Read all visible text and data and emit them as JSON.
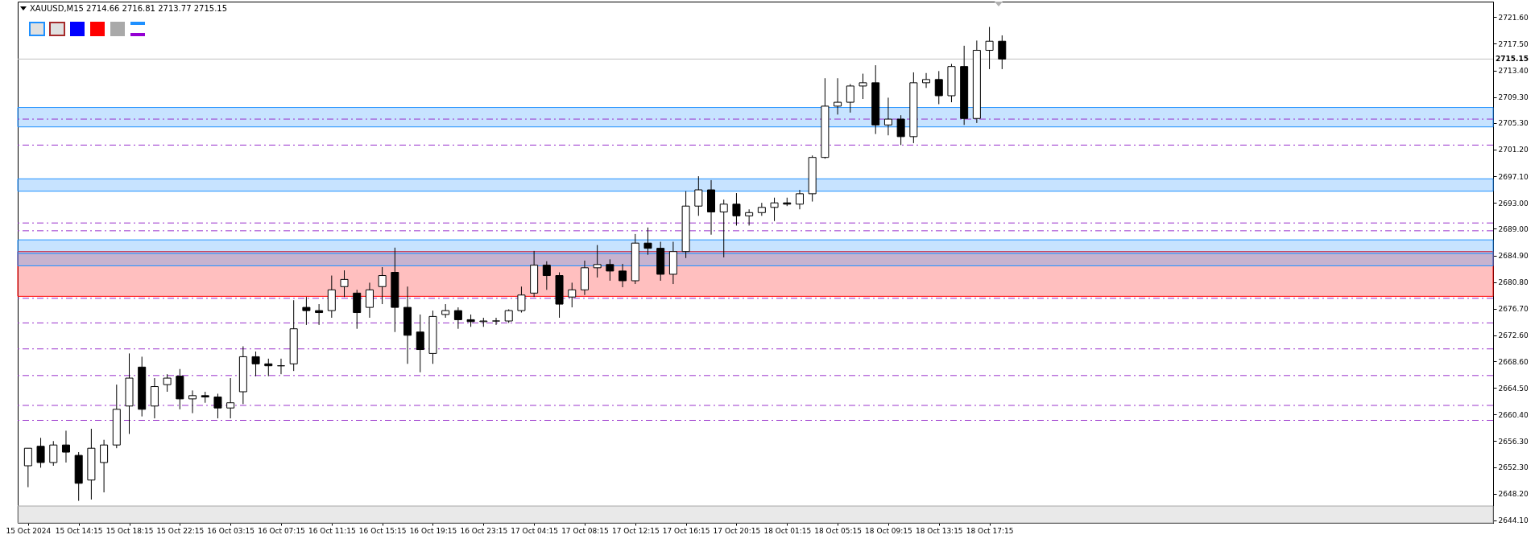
{
  "chart_data": {
    "type": "candlestick",
    "title": "XAUUSD,M15  2714.66 2716.81 2713.77 2715.15",
    "categories": [
      "15 Oct 2024",
      null,
      null,
      null,
      "15 Oct 14:15",
      null,
      null,
      null,
      "15 Oct 18:15",
      null,
      null,
      null,
      "15 Oct 22:15",
      null,
      null,
      null,
      "16 Oct 03:15",
      null,
      null,
      null,
      "16 Oct 07:15",
      null,
      null,
      null,
      "16 Oct 11:15",
      null,
      null,
      null,
      "16 Oct 15:15",
      null,
      null,
      null,
      "16 Oct 19:15",
      null,
      null,
      null,
      "16 Oct 23:15",
      null,
      null,
      null,
      "17 Oct 04:15",
      null,
      null,
      null,
      "17 Oct 08:15",
      null,
      null,
      null,
      "17 Oct 12:15",
      null,
      null,
      null,
      "17 Oct 16:15",
      null,
      null,
      null,
      "17 Oct 20:15",
      null,
      null,
      null,
      "18 Oct 01:15",
      null,
      null,
      null,
      "18 Oct 05:15",
      null,
      null,
      null,
      "18 Oct 09:15",
      null,
      null,
      null,
      "18 Oct 13:15",
      null,
      null,
      null,
      "18 Oct 17:15",
      null,
      null,
      null,
      null,
      null,
      null,
      null,
      null,
      null,
      null,
      null,
      null,
      null,
      null,
      null,
      null,
      null,
      null,
      null,
      null,
      null,
      null,
      null,
      null,
      null,
      null,
      null,
      null,
      null,
      null,
      null,
      null,
      null,
      null,
      null,
      null,
      null,
      null,
      null
    ],
    "ohlc": [
      [
        2652.5,
        2655.2,
        2649.2,
        2655.2
      ],
      [
        2655.5,
        2656.8,
        2652.2,
        2653.0
      ],
      [
        2653.0,
        2656.3,
        2652.5,
        2655.7
      ],
      [
        2655.7,
        2657.9,
        2653.0,
        2654.6
      ],
      [
        2654.1,
        2654.6,
        2647.1,
        2649.8
      ],
      [
        2650.3,
        2658.2,
        2647.3,
        2655.2
      ],
      [
        2653.0,
        2656.5,
        2648.4,
        2655.7
      ],
      [
        2655.7,
        2665.0,
        2655.2,
        2661.2
      ],
      [
        2661.7,
        2669.8,
        2657.4,
        2666.0
      ],
      [
        2667.7,
        2669.3,
        2660.1,
        2661.2
      ],
      [
        2661.7,
        2666.0,
        2659.8,
        2664.7
      ],
      [
        2665.0,
        2666.6,
        2663.9,
        2666.0
      ],
      [
        2666.3,
        2667.4,
        2661.2,
        2662.8
      ],
      [
        2662.8,
        2664.1,
        2660.6,
        2663.3
      ],
      [
        2663.3,
        2663.9,
        2662.2,
        2663.1
      ],
      [
        2663.1,
        2663.6,
        2659.8,
        2661.4
      ],
      [
        2661.4,
        2666.0,
        2659.8,
        2662.2
      ],
      [
        2663.9,
        2670.9,
        2662.0,
        2669.3
      ],
      [
        2669.3,
        2670.1,
        2666.3,
        2668.2
      ],
      [
        2668.2,
        2669.0,
        2666.3,
        2667.9
      ],
      [
        2667.9,
        2669.0,
        2666.6,
        2667.9
      ],
      [
        2668.2,
        2678.0,
        2667.1,
        2673.6
      ],
      [
        2676.9,
        2678.5,
        2674.2,
        2676.4
      ],
      [
        2676.4,
        2677.4,
        2674.2,
        2676.1
      ],
      [
        2676.4,
        2681.8,
        2675.3,
        2679.6
      ],
      [
        2680.1,
        2682.6,
        2678.5,
        2681.2
      ],
      [
        2679.1,
        2679.6,
        2673.6,
        2676.1
      ],
      [
        2676.9,
        2680.7,
        2675.3,
        2679.6
      ],
      [
        2680.1,
        2683.1,
        2677.4,
        2681.8
      ],
      [
        2682.3,
        2686.1,
        2673.1,
        2676.9
      ],
      [
        2676.9,
        2680.1,
        2668.2,
        2672.6
      ],
      [
        2673.1,
        2675.8,
        2666.9,
        2670.4
      ],
      [
        2669.8,
        2676.4,
        2668.2,
        2675.5
      ],
      [
        2675.8,
        2677.4,
        2675.3,
        2676.4
      ],
      [
        2676.4,
        2676.9,
        2673.6,
        2675.0
      ],
      [
        2675.0,
        2675.8,
        2673.9,
        2674.7
      ],
      [
        2674.7,
        2675.3,
        2673.9,
        2674.8
      ],
      [
        2674.8,
        2675.3,
        2674.2,
        2674.8
      ],
      [
        2674.8,
        2676.6,
        2674.5,
        2676.4
      ],
      [
        2676.4,
        2680.1,
        2676.1,
        2678.8
      ],
      [
        2679.1,
        2685.6,
        2678.5,
        2683.4
      ],
      [
        2683.4,
        2684.0,
        2679.6,
        2681.8
      ],
      [
        2681.8,
        2682.3,
        2675.3,
        2677.4
      ],
      [
        2678.5,
        2680.7,
        2676.9,
        2679.6
      ],
      [
        2679.6,
        2684.1,
        2678.8,
        2683.0
      ],
      [
        2683.0,
        2686.5,
        2681.5,
        2683.5
      ],
      [
        2683.5,
        2684.3,
        2681.0,
        2682.5
      ],
      [
        2682.5,
        2683.6,
        2680.0,
        2681.0
      ],
      [
        2681.0,
        2688.2,
        2680.5,
        2686.8
      ],
      [
        2686.8,
        2689.2,
        2685.0,
        2686.0
      ],
      [
        2686.0,
        2687.0,
        2681.0,
        2682.0
      ],
      [
        2682.0,
        2687.0,
        2680.5,
        2685.5
      ],
      [
        2685.5,
        2694.8,
        2684.5,
        2692.5
      ],
      [
        2692.5,
        2697.1,
        2691.0,
        2695.0
      ],
      [
        2695.0,
        2696.5,
        2688.1,
        2691.6
      ],
      [
        2691.6,
        2693.5,
        2684.6,
        2692.8
      ],
      [
        2692.8,
        2694.5,
        2689.5,
        2691.0
      ],
      [
        2691.0,
        2692.0,
        2689.5,
        2691.5
      ],
      [
        2691.5,
        2693.0,
        2691.0,
        2692.3
      ],
      [
        2692.3,
        2693.8,
        2690.2,
        2693.0
      ],
      [
        2693.0,
        2693.8,
        2692.5,
        2692.8
      ],
      [
        2692.8,
        2695.0,
        2692.0,
        2694.4
      ],
      [
        2694.4,
        2700.3,
        2693.2,
        2700.0
      ],
      [
        2700.0,
        2712.2,
        2699.8,
        2707.9
      ],
      [
        2707.9,
        2712.2,
        2706.6,
        2708.5
      ],
      [
        2708.5,
        2711.3,
        2706.9,
        2711.0
      ],
      [
        2711.0,
        2712.9,
        2709.0,
        2711.5
      ],
      [
        2711.5,
        2714.2,
        2703.6,
        2705.0
      ],
      [
        2705.0,
        2709.2,
        2703.4,
        2705.9
      ],
      [
        2705.9,
        2706.5,
        2701.9,
        2703.2
      ],
      [
        2703.2,
        2713.1,
        2702.2,
        2711.5
      ],
      [
        2711.5,
        2713.0,
        2710.7,
        2712.0
      ],
      [
        2712.0,
        2713.3,
        2708.2,
        2709.5
      ],
      [
        2709.5,
        2714.4,
        2708.5,
        2714.0
      ],
      [
        2714.0,
        2717.2,
        2705.0,
        2706.0
      ],
      [
        2706.0,
        2718.0,
        2705.3,
        2716.5
      ],
      [
        2716.5,
        2720.1,
        2713.6,
        2717.9
      ],
      [
        2717.9,
        2718.8,
        2713.6,
        2715.15
      ],
      null,
      null,
      null,
      null,
      null,
      null,
      null,
      null,
      null,
      null,
      null,
      null,
      null,
      null,
      null,
      null,
      null,
      null,
      null,
      null,
      null,
      null,
      null,
      null,
      null,
      null,
      null,
      null,
      null,
      null,
      null,
      null,
      null,
      null,
      null,
      null,
      null,
      null
    ],
    "ylim": [
      2643.7,
      2724.0
    ],
    "yticks": [
      {
        "value": 2644.1,
        "label": "2644.10"
      },
      {
        "value": 2648.2,
        "label": "2648.20"
      },
      {
        "value": 2652.3,
        "label": "2652.30"
      },
      {
        "value": 2656.3,
        "label": "2656.30"
      },
      {
        "value": 2660.4,
        "label": "2660.40"
      },
      {
        "value": 2664.5,
        "label": "2664.50"
      },
      {
        "value": 2668.6,
        "label": "2668.60"
      },
      {
        "value": 2672.6,
        "label": "2672.60"
      },
      {
        "value": 2676.7,
        "label": "2676.70"
      },
      {
        "value": 2680.8,
        "label": "2680.80"
      },
      {
        "value": 2684.9,
        "label": "2684.90"
      },
      {
        "value": 2689.0,
        "label": "2689.00"
      },
      {
        "value": 2693.0,
        "label": "2693.00"
      },
      {
        "value": 2697.1,
        "label": "2697.10"
      },
      {
        "value": 2701.2,
        "label": "2701.20"
      },
      {
        "value": 2705.3,
        "label": "2705.30"
      },
      {
        "value": 2709.3,
        "label": "2709.30"
      },
      {
        "value": 2713.4,
        "label": "2713.40"
      },
      {
        "value": 2717.5,
        "label": "2717.50"
      },
      {
        "value": 2721.6,
        "label": "2721.60"
      }
    ],
    "bands": [
      {
        "axis": "y",
        "from": 2643.7,
        "to": 2646.3,
        "color": "#a9a9a9"
      },
      {
        "axis": "y",
        "from": 2678.6,
        "to": 2685.5,
        "color": "#ff0000"
      },
      {
        "axis": "y",
        "from": 2704.7,
        "to": 2707.7,
        "color": "#1e90ff"
      },
      {
        "axis": "y",
        "from": 2694.8,
        "to": 2696.7,
        "color": "#1e90ff"
      },
      {
        "axis": "y",
        "from": 2683.3,
        "to": 2687.3,
        "color": "#1e90ff"
      }
    ],
    "ref_lines": [
      {
        "axis": "y",
        "value": 2715.15,
        "label": "2715.15",
        "color": "#c0c0c0",
        "line_style": "solid"
      },
      {
        "axis": "y",
        "value": 2685.2,
        "color": "#1e90ff",
        "line_style": "solid"
      },
      {
        "axis": "y",
        "value": 2705.9,
        "color": "#9932cc",
        "line_style": "dashed"
      },
      {
        "axis": "y",
        "value": 2701.9,
        "color": "#9932cc",
        "line_style": "dashed"
      },
      {
        "axis": "y",
        "value": 2689.9,
        "color": "#9932cc",
        "line_style": "dashed"
      },
      {
        "axis": "y",
        "value": 2688.7,
        "color": "#9932cc",
        "line_style": "dashed"
      },
      {
        "axis": "y",
        "value": 2678.3,
        "color": "#9932cc",
        "line_style": "dashed"
      },
      {
        "axis": "y",
        "value": 2674.5,
        "color": "#9932cc",
        "line_style": "dashed"
      },
      {
        "axis": "y",
        "value": 2670.5,
        "color": "#9932cc",
        "line_style": "dashed"
      },
      {
        "axis": "y",
        "value": 2666.4,
        "color": "#9932cc",
        "line_style": "dashed"
      },
      {
        "axis": "y",
        "value": 2661.8,
        "color": "#9932cc",
        "line_style": "dashed"
      },
      {
        "axis": "y",
        "value": 2659.5,
        "color": "#9932cc",
        "line_style": "dashed"
      }
    ]
  }
}
